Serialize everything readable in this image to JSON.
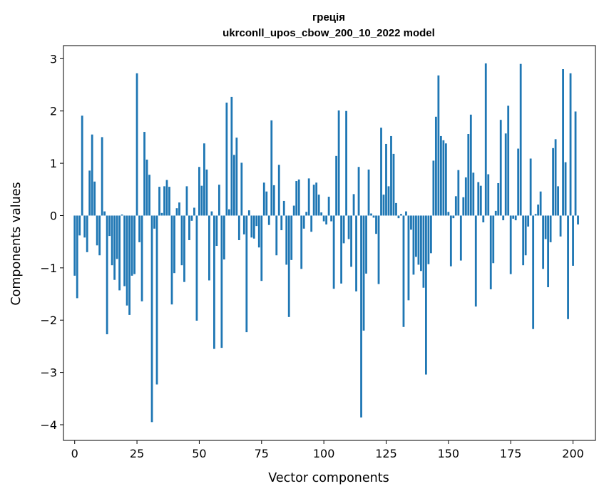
{
  "chart_data": {
    "type": "bar",
    "title_line1": "грецiя",
    "title_line2": "ukrconll_upos_cbow_200_10_2022 model",
    "xlabel": "Vector components",
    "ylabel": "Components values",
    "xlim": [
      -4.5,
      209
    ],
    "ylim": [
      -4.3,
      3.25
    ],
    "xticks": [
      0,
      25,
      50,
      75,
      100,
      125,
      150,
      175,
      200
    ],
    "yticks": [
      -4,
      -3,
      -2,
      -1,
      0,
      1,
      2,
      3
    ],
    "bar_color": "#1f77b4",
    "grid": false,
    "values": [
      -1.15,
      -1.58,
      -0.38,
      1.91,
      -0.42,
      -0.7,
      0.86,
      1.55,
      0.65,
      -0.57,
      -0.76,
      1.5,
      0.08,
      -2.27,
      -0.39,
      -0.95,
      -1.23,
      -0.83,
      -1.43,
      0.02,
      -1.35,
      -1.72,
      -1.9,
      -1.15,
      -1.12,
      2.72,
      -0.51,
      -1.64,
      1.6,
      1.07,
      0.78,
      -3.95,
      -0.25,
      -3.23,
      0.55,
      0.05,
      0.56,
      0.68,
      0.55,
      -1.7,
      -1.1,
      0.14,
      0.25,
      -0.95,
      -1.27,
      0.56,
      -0.47,
      -0.1,
      0.15,
      -2.01,
      0.93,
      0.57,
      1.38,
      0.88,
      -1.24,
      0.08,
      -2.55,
      -0.58,
      0.59,
      -2.53,
      -0.84,
      2.16,
      0.12,
      2.27,
      1.16,
      1.49,
      -0.47,
      1.01,
      -0.36,
      -2.23,
      0.1,
      -0.42,
      -0.44,
      -0.2,
      -0.61,
      -1.25,
      0.63,
      0.46,
      -0.18,
      1.82,
      0.58,
      -0.76,
      0.97,
      -0.28,
      0.28,
      -0.94,
      -1.94,
      -0.85,
      0.19,
      0.66,
      0.69,
      -1.02,
      -0.25,
      0.07,
      0.71,
      -0.31,
      0.59,
      0.63,
      0.4,
      0.06,
      -0.11,
      -0.17,
      0.36,
      -0.11,
      -1.4,
      1.14,
      2.01,
      -1.3,
      -0.53,
      2.0,
      -0.45,
      -0.98,
      0.41,
      -1.45,
      0.93,
      -3.86,
      -2.2,
      -1.11,
      0.88,
      0.04,
      -0.04,
      -0.35,
      -1.31,
      1.68,
      0.4,
      1.37,
      0.56,
      1.52,
      1.18,
      0.24,
      -0.05,
      0.03,
      -2.13,
      0.08,
      -1.62,
      -0.27,
      -1.13,
      -0.79,
      -0.94,
      -1.06,
      -1.38,
      -3.04,
      -0.93,
      -0.72,
      1.05,
      1.89,
      2.68,
      1.52,
      1.44,
      1.38,
      0.07,
      -0.97,
      -0.05,
      0.37,
      0.87,
      -0.86,
      0.35,
      0.73,
      1.56,
      1.93,
      0.82,
      -1.74,
      0.64,
      0.57,
      -0.13,
      2.91,
      0.79,
      -1.41,
      -0.91,
      0.09,
      0.62,
      1.83,
      -0.09,
      1.57,
      2.1,
      -1.12,
      -0.06,
      -0.09,
      1.28,
      2.9,
      -0.95,
      -0.76,
      -0.21,
      1.09,
      -2.17,
      0.03,
      0.21,
      0.46,
      -1.02,
      -0.45,
      -1.37,
      -0.51,
      1.29,
      1.46,
      0.56,
      -0.4,
      2.8,
      1.02,
      -1.98,
      2.72,
      -0.96,
      1.99,
      -0.17
    ]
  }
}
